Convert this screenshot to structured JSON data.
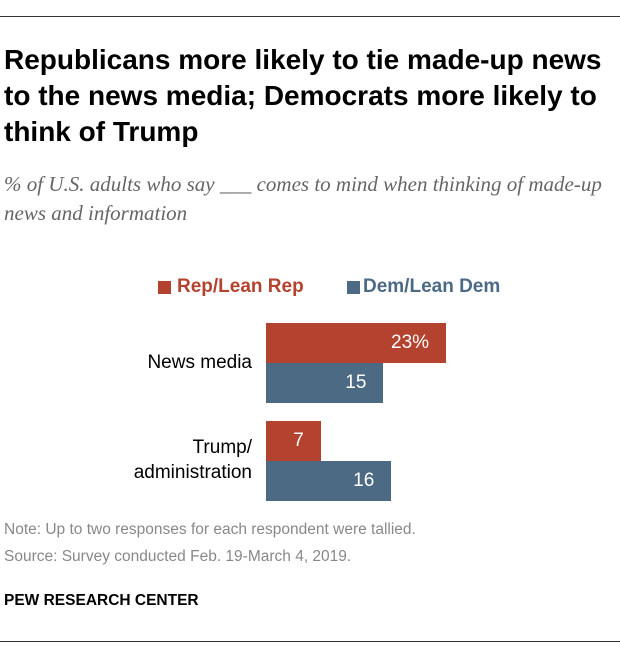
{
  "title": "Republicans more likely to tie made-up news to the news media; Democrats more likely to think of Trump",
  "subtitle": "% of U.S. adults who say ___ comes to mind when thinking of made-up news and information",
  "note": "Note: Up to two responses for each respondent were tallied.",
  "source": "Source: Survey conducted Feb. 19-March 4, 2019.",
  "brand": "PEW RESEARCH CENTER",
  "colors": {
    "rep": "#b3432f",
    "dem": "#4d6a85"
  },
  "chart_data": {
    "type": "bar",
    "orientation": "horizontal",
    "categories": [
      "News media",
      "Trump/ administration"
    ],
    "series": [
      {
        "name": "Rep/Lean Rep",
        "values": [
          23,
          7
        ],
        "labels": [
          "23%",
          "7"
        ]
      },
      {
        "name": "Dem/Lean Dem",
        "values": [
          15,
          16
        ],
        "labels": [
          "15",
          "16"
        ]
      }
    ],
    "legend": "top"
  }
}
